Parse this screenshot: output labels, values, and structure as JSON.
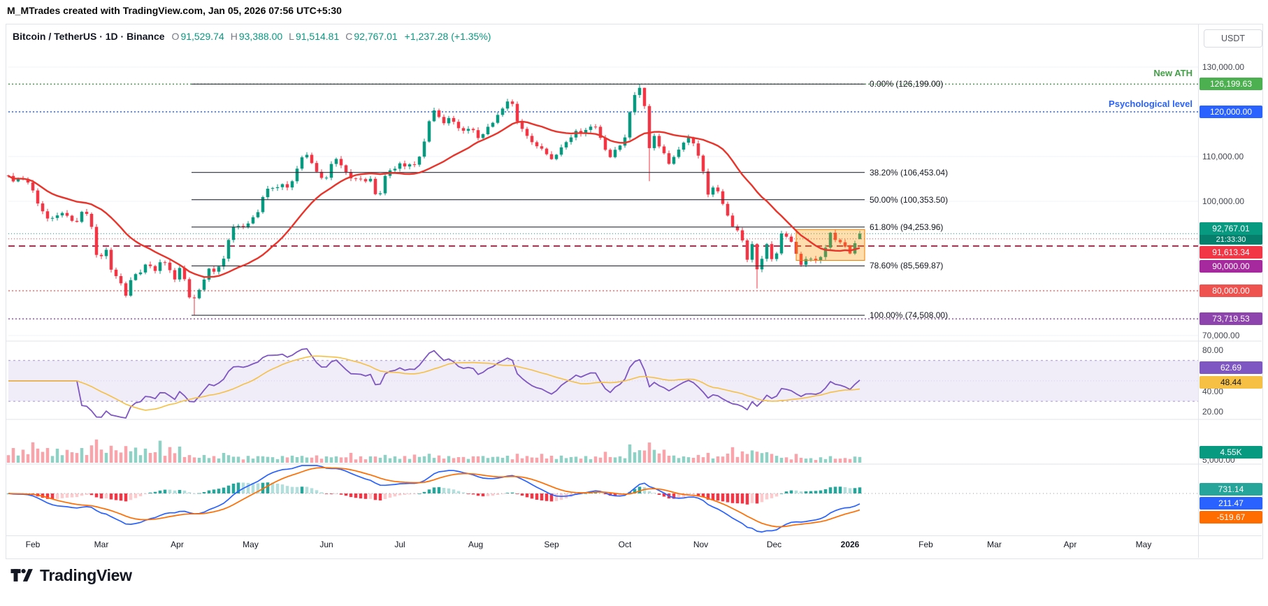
{
  "attribution": "M_MTrades created with TradingView.com, Jan 05, 2026 07:56 UTC+5:30",
  "header": {
    "title": "Bitcoin / TetherUS · 1D · Binance",
    "ohlc": [
      {
        "k": "O",
        "v": "91,529.74"
      },
      {
        "k": "H",
        "v": "93,388.00"
      },
      {
        "k": "L",
        "v": "91,514.81"
      },
      {
        "k": "C",
        "v": "92,767.01"
      }
    ],
    "change": "+1,237.28 (+1.35%)"
  },
  "price_scale": {
    "currency": "USDT",
    "plain_labels": [
      {
        "text": "130,000.00",
        "price": 130000
      },
      {
        "text": "110,000.00",
        "price": 110000
      },
      {
        "text": "100,000.00",
        "price": 100000
      },
      {
        "text": "70,000.00",
        "price": 70000
      }
    ],
    "badges": [
      {
        "text": "126,199.63",
        "price": 126199.63,
        "color": "#4caf50"
      },
      {
        "text": "120,000.00",
        "price": 120000,
        "color": "#2962ff"
      },
      {
        "text": "92,767.01",
        "sub": "21:33:30",
        "price": 92767.01,
        "color": "#089981"
      },
      {
        "text": "91,613.34",
        "price": 91613.34,
        "color": "#f23645"
      },
      {
        "text": "90,000.00",
        "price": 90000,
        "color": "#a62a9e"
      },
      {
        "text": "80,000.00",
        "price": 80000,
        "color": "#ef5350"
      },
      {
        "text": "73,719.53",
        "price": 73719.53,
        "color": "#8e44ad"
      }
    ]
  },
  "annotations": {
    "new_ath": "New ATH",
    "psychological": "Psychological level"
  },
  "levels": [
    {
      "price": 126199.63,
      "color": "#3f9b43",
      "dash": "2 3",
      "width": 1.4
    },
    {
      "price": 120000,
      "color": "#2962ff",
      "dash": "2 3",
      "width": 1.4
    },
    {
      "price": 92767.01,
      "color": "#089981",
      "dash": "1 3",
      "width": 1
    },
    {
      "price": 91613.34,
      "color": "#f23645",
      "dash": "1 3",
      "width": 1
    },
    {
      "price": 90000,
      "color": "#d0244c",
      "dash": "9 6",
      "width": 2
    },
    {
      "price": 80000,
      "color": "#ef5350",
      "dash": "2 3",
      "width": 1.2
    },
    {
      "price": 73719.53,
      "color": "#8e44ad",
      "dash": "2 3",
      "width": 1.4
    }
  ],
  "fib": [
    {
      "label": "0.00% (126,199.00)",
      "price": 126199
    },
    {
      "label": "38.20% (106,453.04)",
      "price": 106453.04
    },
    {
      "label": "50.00% (100,353.50)",
      "price": 100353.5
    },
    {
      "label": "61.80% (94,253.96)",
      "price": 94253.96
    },
    {
      "label": "78.60% (85,569.87)",
      "price": 85569.87
    },
    {
      "label": "100.00% (74,508.00)",
      "price": 74508
    }
  ],
  "rsi_pane": {
    "scale_labels": [
      {
        "text": "80.00",
        "value": 80
      },
      {
        "text": "40.00",
        "value": 40
      },
      {
        "text": "20.00",
        "value": 20
      }
    ],
    "badges": [
      {
        "text": "62.69",
        "value": 62.69,
        "color": "#7e57c2",
        "dark": false
      },
      {
        "text": "48.44",
        "value": 48.44,
        "color": "#f5c043",
        "dark": true
      }
    ]
  },
  "volume_pane": {
    "scale_label": "5,000.00",
    "badge": {
      "text": "4.55K",
      "color": "#089981"
    }
  },
  "macd_pane": {
    "badges": [
      {
        "text": "731.14",
        "value": 731.14,
        "color": "#26a69a"
      },
      {
        "text": "211.47",
        "value": 211.47,
        "color": "#2962ff"
      },
      {
        "text": "-519.67",
        "value": -519.67,
        "color": "#ff6d00"
      }
    ]
  },
  "time_axis": [
    {
      "label": "Feb",
      "d": 0
    },
    {
      "label": "Mar",
      "d": 28
    },
    {
      "label": "Apr",
      "d": 59
    },
    {
      "label": "May",
      "d": 89
    },
    {
      "label": "Jun",
      "d": 120
    },
    {
      "label": "Jul",
      "d": 150
    },
    {
      "label": "Aug",
      "d": 181
    },
    {
      "label": "Sep",
      "d": 212
    },
    {
      "label": "Oct",
      "d": 242
    },
    {
      "label": "Nov",
      "d": 273
    },
    {
      "label": "Dec",
      "d": 303
    },
    {
      "label": "2026",
      "d": 334,
      "bold": true
    },
    {
      "label": "Feb",
      "d": 365
    },
    {
      "label": "Mar",
      "d": 393
    },
    {
      "label": "Apr",
      "d": 424
    },
    {
      "label": "May",
      "d": 454
    }
  ],
  "logo_text": "TradingView",
  "chart_data": {
    "type": "candlestick",
    "title": "Bitcoin / TetherUS, 1D, Binance",
    "y_axis": {
      "label": "Price (USDT)",
      "range": [
        67000,
        133000
      ],
      "tick_step": 10000
    },
    "x_axis": {
      "start": "Feb 2025",
      "end": "May 2026",
      "last_data_point": "Jan 05, 2026"
    },
    "last_candle": {
      "open": 91529.74,
      "high": 93388.0,
      "low": 91514.81,
      "close": 92767.01,
      "change": 1237.28,
      "change_pct": 1.35
    },
    "key_levels": {
      "new_ath": 126199.63,
      "psychological": 120000,
      "current_price": 92767.01,
      "red_line": 91613.34,
      "round_level": 90000,
      "support": 80000,
      "purple_line": 73719.53
    },
    "fibonacci": {
      "from_low": 74508,
      "to_high": 126199,
      "levels": [
        {
          "pct": 0.0,
          "price": 126199.0
        },
        {
          "pct": 38.2,
          "price": 106453.04
        },
        {
          "pct": 50.0,
          "price": 100353.5
        },
        {
          "pct": 61.8,
          "price": 94253.96
        },
        {
          "pct": 78.6,
          "price": 85569.87
        },
        {
          "pct": 100.0,
          "price": 74508.0
        }
      ]
    },
    "anchors_close_by_day": [
      [
        -10,
        105.5
      ],
      [
        -7,
        103.8
      ],
      [
        -5,
        106.2
      ],
      [
        -2,
        104.1
      ],
      [
        0,
        102.2
      ],
      [
        3,
        98.1
      ],
      [
        6,
        96.6
      ],
      [
        9,
        96.2
      ],
      [
        12,
        97.4
      ],
      [
        15,
        96.1
      ],
      [
        18,
        95.6
      ],
      [
        21,
        98.3
      ],
      [
        23,
        96.2
      ],
      [
        25,
        91.9
      ],
      [
        27,
        84.4
      ],
      [
        29,
        91.6
      ],
      [
        31,
        86.2
      ],
      [
        33,
        83.4
      ],
      [
        35,
        82.9
      ],
      [
        38,
        79.2
      ],
      [
        41,
        83.6
      ],
      [
        44,
        84.1
      ],
      [
        47,
        86.6
      ],
      [
        50,
        84.2
      ],
      [
        53,
        87.4
      ],
      [
        56,
        84.5
      ],
      [
        58,
        82.8
      ],
      [
        60,
        84.9
      ],
      [
        62,
        82.4
      ],
      [
        65,
        76.9
      ],
      [
        67,
        79.6
      ],
      [
        69,
        81.3
      ],
      [
        72,
        84.6
      ],
      [
        75,
        84.4
      ],
      [
        78,
        87.4
      ],
      [
        81,
        93.4
      ],
      [
        84,
        94.6
      ],
      [
        87,
        94.1
      ],
      [
        89,
        96.4
      ],
      [
        92,
        97.1
      ],
      [
        95,
        102.8
      ],
      [
        98,
        103.1
      ],
      [
        101,
        103.7
      ],
      [
        104,
        102.9
      ],
      [
        107,
        105.4
      ],
      [
        109,
        109.3
      ],
      [
        111,
        111.2
      ],
      [
        113,
        109.1
      ],
      [
        115,
        107.4
      ],
      [
        118,
        105.2
      ],
      [
        120,
        105.7
      ],
      [
        123,
        109.6
      ],
      [
        126,
        108.1
      ],
      [
        129,
        105.6
      ],
      [
        132,
        105.2
      ],
      [
        135,
        104.3
      ],
      [
        138,
        104.9
      ],
      [
        141,
        100.2
      ],
      [
        143,
        103.9
      ],
      [
        145,
        106.8
      ],
      [
        148,
        107.2
      ],
      [
        150,
        108.5
      ],
      [
        153,
        107.9
      ],
      [
        156,
        108.2
      ],
      [
        159,
        110.9
      ],
      [
        161,
        115.6
      ],
      [
        163,
        120.8
      ],
      [
        165,
        119.4
      ],
      [
        168,
        117.6
      ],
      [
        171,
        118.9
      ],
      [
        174,
        116.2
      ],
      [
        177,
        115.3
      ],
      [
        179,
        117.6
      ],
      [
        181,
        114.0
      ],
      [
        184,
        114.9
      ],
      [
        187,
        117.1
      ],
      [
        190,
        119.3
      ],
      [
        193,
        121.6
      ],
      [
        195,
        123.0
      ],
      [
        198,
        118.1
      ],
      [
        201,
        115.4
      ],
      [
        204,
        113.3
      ],
      [
        207,
        111.1
      ],
      [
        209,
        112.6
      ],
      [
        211,
        108.9
      ],
      [
        213,
        110.1
      ],
      [
        216,
        111.6
      ],
      [
        219,
        113.9
      ],
      [
        222,
        115.8
      ],
      [
        225,
        115.2
      ],
      [
        228,
        116.4
      ],
      [
        230,
        116.9
      ],
      [
        233,
        112.9
      ],
      [
        236,
        109.7
      ],
      [
        239,
        111.8
      ],
      [
        242,
        114.3
      ],
      [
        244,
        120.2
      ],
      [
        246,
        123.8
      ],
      [
        248,
        124.9
      ],
      [
        250,
        121.4
      ],
      [
        252,
        111.9
      ],
      [
        254,
        114.8
      ],
      [
        257,
        111.3
      ],
      [
        260,
        108.4
      ],
      [
        263,
        110.7
      ],
      [
        266,
        113.4
      ],
      [
        269,
        114.2
      ],
      [
        272,
        110.3
      ],
      [
        274,
        106.6
      ],
      [
        276,
        101.8
      ],
      [
        279,
        103.4
      ],
      [
        282,
        99.6
      ],
      [
        285,
        95.2
      ],
      [
        288,
        93.4
      ],
      [
        290,
        91.1
      ],
      [
        292,
        87.2
      ],
      [
        294,
        90.3
      ],
      [
        296,
        84.9
      ],
      [
        298,
        87.1
      ],
      [
        300,
        90.2
      ],
      [
        302,
        87.4
      ],
      [
        304,
        88.3
      ],
      [
        306,
        92.8
      ],
      [
        308,
        92.1
      ],
      [
        311,
        89.9
      ],
      [
        314,
        85.9
      ],
      [
        317,
        87.6
      ],
      [
        320,
        86.4
      ],
      [
        323,
        88.4
      ],
      [
        326,
        92.9
      ],
      [
        329,
        90.7
      ],
      [
        332,
        89.9
      ],
      [
        334,
        88.7
      ],
      [
        336,
        90.6
      ],
      [
        338,
        92.8
      ]
    ],
    "forced_points": {
      "ath_day": 248,
      "ath_high": 126199,
      "cycle_low_day": 66,
      "cycle_low": 74508,
      "oct_crash_day": 252,
      "oct_crash_low": 104500,
      "nov_low_day": 296,
      "nov_low": 80523
    },
    "indicators": {
      "ma": {
        "type": "SMA",
        "window_days": 40,
        "color": "#e8342a"
      },
      "rsi": {
        "period": 14,
        "last": 62.69,
        "ma_last": 48.44,
        "bands": [
          70,
          30
        ],
        "line_color": "#7e57c2",
        "ma_color": "#f5c043"
      },
      "volume": {
        "last": 4550,
        "last_label": "4.55K",
        "scale_gridline": 5000
      },
      "macd": {
        "fast": 12,
        "slow": 26,
        "signal": 9,
        "histogram_last": 731.14,
        "macd_last": 211.47,
        "signal_last": -519.67
      }
    },
    "highlight_box": {
      "from_day": 312,
      "to_day": 340,
      "price_top": 93700,
      "price_bottom": 86800,
      "color": "#ff9800"
    }
  }
}
